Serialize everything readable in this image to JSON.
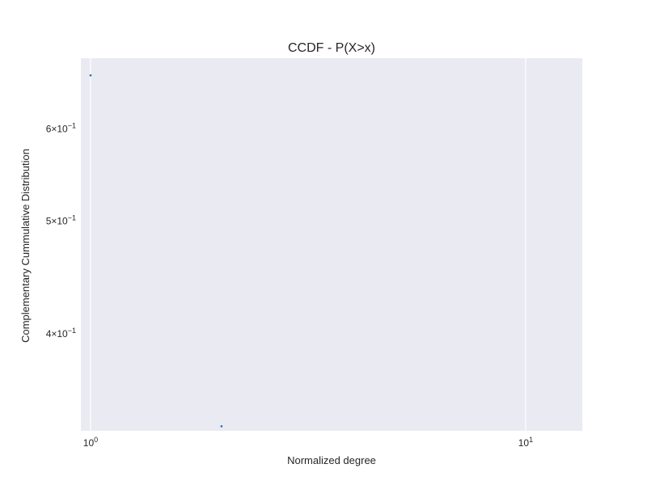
{
  "chart_data": {
    "type": "scatter",
    "title": "CCDF - P(X>x)",
    "xlabel": "Normalized degree",
    "ylabel": "Complementary Cummulative Distribution",
    "x_scale": "log",
    "y_scale": "log",
    "xlim": [
      0.95,
      13.5
    ],
    "ylim": [
      0.33,
      0.69
    ],
    "x_ticks": [
      {
        "value": 1,
        "base": "10",
        "exp": "0"
      },
      {
        "value": 10,
        "base": "10",
        "exp": "1"
      }
    ],
    "y_ticks": [
      {
        "value": 0.6,
        "mantissa": "6",
        "base": "10",
        "exp": "−1"
      },
      {
        "value": 0.5,
        "mantissa": "5",
        "base": "10",
        "exp": "−1"
      },
      {
        "value": 0.4,
        "mantissa": "4",
        "base": "10",
        "exp": "−1"
      }
    ],
    "grid": true,
    "series": [
      {
        "color": "#1f77b4",
        "points": [
          {
            "x": 1.0,
            "y": 0.667
          },
          {
            "x": 2.0,
            "y": 0.333
          }
        ]
      }
    ],
    "colors": {
      "plot_background": "#eaeaf2",
      "grid": "#ffffff",
      "text": "#262626"
    }
  }
}
